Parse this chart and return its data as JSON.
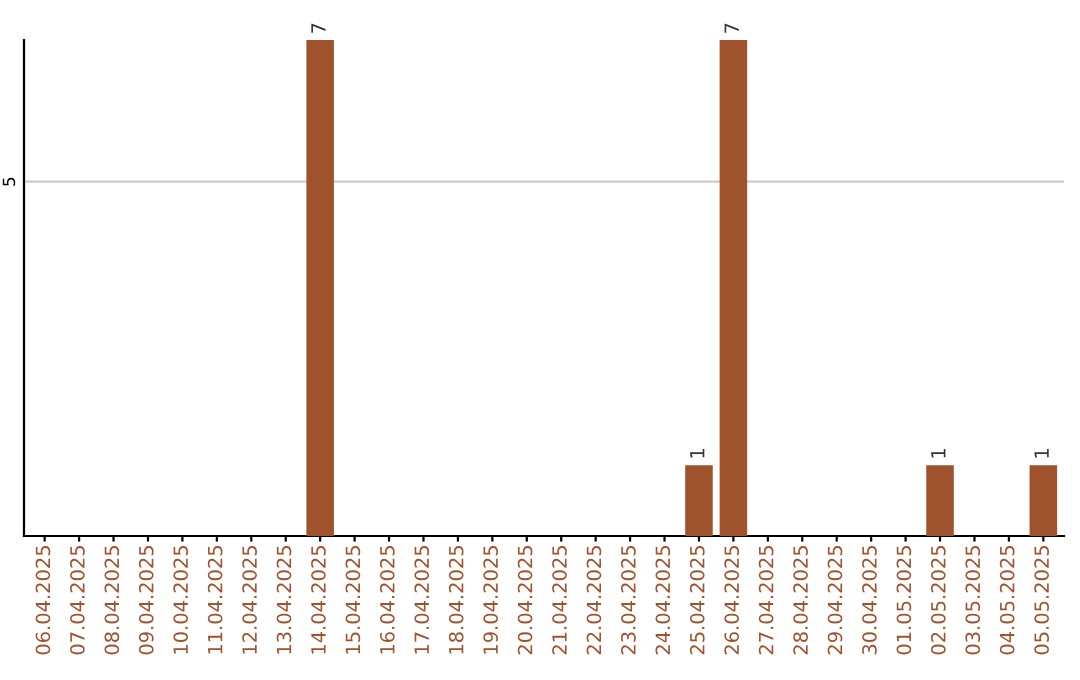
{
  "chart_data": {
    "type": "bar",
    "categories": [
      "06.04.2025",
      "07.04.2025",
      "08.04.2025",
      "09.04.2025",
      "10.04.2025",
      "11.04.2025",
      "12.04.2025",
      "13.04.2025",
      "14.04.2025",
      "15.04.2025",
      "16.04.2025",
      "17.04.2025",
      "18.04.2025",
      "19.04.2025",
      "20.04.2025",
      "21.04.2025",
      "22.04.2025",
      "23.04.2025",
      "24.04.2025",
      "25.04.2025",
      "26.04.2025",
      "27.04.2025",
      "28.04.2025",
      "29.04.2025",
      "30.04.2025",
      "01.05.2025",
      "02.05.2025",
      "03.05.2025",
      "04.05.2025",
      "05.05.2025"
    ],
    "values": [
      0,
      0,
      0,
      0,
      0,
      0,
      0,
      0,
      7,
      0,
      0,
      0,
      0,
      0,
      0,
      0,
      0,
      0,
      0,
      1,
      7,
      0,
      0,
      0,
      0,
      0,
      1,
      0,
      0,
      1
    ],
    "value_labels": [
      null,
      null,
      null,
      null,
      null,
      null,
      null,
      null,
      "7",
      null,
      null,
      null,
      null,
      null,
      null,
      null,
      null,
      null,
      null,
      "1",
      "7",
      null,
      null,
      null,
      null,
      null,
      "1",
      null,
      null,
      "1"
    ],
    "color": "#a0522d",
    "ylim": [
      0,
      7
    ],
    "yticks": [
      5
    ],
    "grid": "y"
  }
}
